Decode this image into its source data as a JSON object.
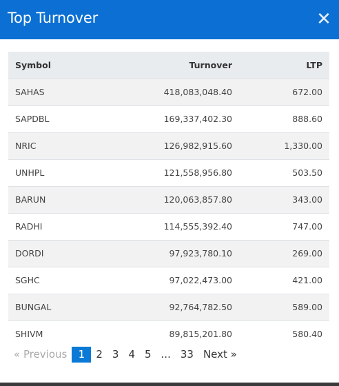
{
  "modal": {
    "title": "Top Turnover",
    "close_icon": "close-icon"
  },
  "table": {
    "headers": {
      "symbol": "Symbol",
      "turnover": "Turnover",
      "ltp": "LTP"
    },
    "rows": [
      {
        "symbol": "SAHAS",
        "turnover": "418,083,048.40",
        "ltp": "672.00"
      },
      {
        "symbol": "SAPDBL",
        "turnover": "169,337,402.30",
        "ltp": "888.60"
      },
      {
        "symbol": "NRIC",
        "turnover": "126,982,915.60",
        "ltp": "1,330.00"
      },
      {
        "symbol": "UNHPL",
        "turnover": "121,558,956.80",
        "ltp": "503.50"
      },
      {
        "symbol": "BARUN",
        "turnover": "120,063,857.80",
        "ltp": "343.00"
      },
      {
        "symbol": "RADHI",
        "turnover": "114,555,392.40",
        "ltp": "747.00"
      },
      {
        "symbol": "DORDI",
        "turnover": "97,923,780.10",
        "ltp": "269.00"
      },
      {
        "symbol": "SGHC",
        "turnover": "97,022,473.00",
        "ltp": "421.00"
      },
      {
        "symbol": "BUNGAL",
        "turnover": "92,764,782.50",
        "ltp": "589.00"
      },
      {
        "symbol": "SHIVM",
        "turnover": "89,815,201.80",
        "ltp": "580.40"
      }
    ]
  },
  "pagination": {
    "previous": "«   Previous",
    "pages": [
      "1",
      "2",
      "3",
      "4",
      "5"
    ],
    "ellipsis": "...",
    "last": "33",
    "next": "Next   »",
    "active": "1"
  }
}
